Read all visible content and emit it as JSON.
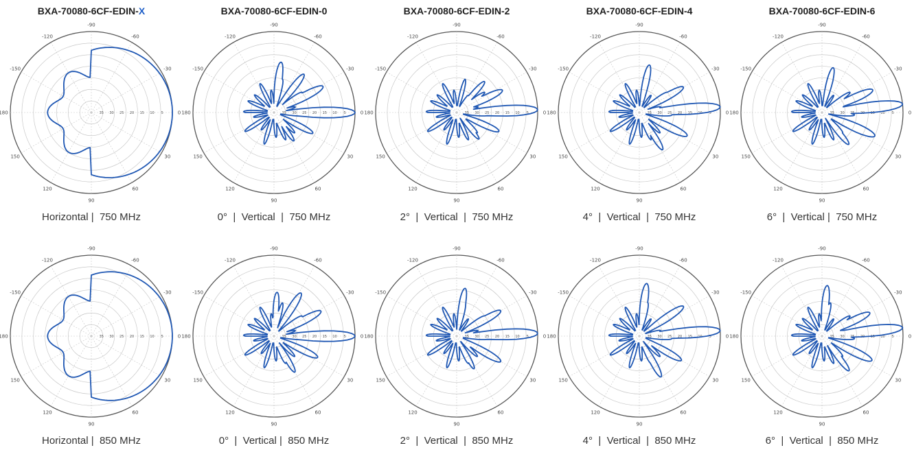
{
  "columns": [
    {
      "title_main": "BXA-70080-6CF-EDIN-",
      "title_suffix": "X"
    },
    {
      "title_main": "BXA-70080-6CF-EDIN-0",
      "title_suffix": ""
    },
    {
      "title_main": "BXA-70080-6CF-EDIN-2",
      "title_suffix": ""
    },
    {
      "title_main": "BXA-70080-6CF-EDIN-4",
      "title_suffix": ""
    },
    {
      "title_main": "BXA-70080-6CF-EDIN-6",
      "title_suffix": ""
    }
  ],
  "colors": {
    "trace": "#1f57b3",
    "grid": "#c8c8c8",
    "outer_ring": "#555555"
  },
  "chart_data": [
    {
      "type": "polar",
      "caption": "Horizontal |  750 MHz",
      "angle_labels": [
        "0",
        "-30",
        "-60",
        "-90",
        "-120",
        "-150",
        "180",
        "150",
        "120",
        "90",
        "60",
        "30"
      ],
      "radial_labels": [
        "35",
        "30",
        "25",
        "20",
        "15",
        "10",
        "5"
      ],
      "pattern": "horizontal",
      "beamwidth_deg": 65
    },
    {
      "type": "polar",
      "caption": "0°  |  Vertical  |  750 MHz",
      "angle_labels": [
        "0",
        "-30",
        "-60",
        "-90",
        "-120",
        "-150",
        "180",
        "150",
        "120",
        "90",
        "60",
        "30"
      ],
      "radial_labels": [
        "35",
        "30",
        "25",
        "20",
        "15",
        "10",
        "5"
      ],
      "pattern": "vertical",
      "tilt_deg": 0,
      "lobes": [
        {
          "angle": 0,
          "value_db": 0
        },
        {
          "angle": -28,
          "value_db": -11
        },
        {
          "angle": -52,
          "value_db": -14
        },
        {
          "angle": -82,
          "value_db": -13
        },
        {
          "angle": 28,
          "value_db": -16
        },
        {
          "angle": 55,
          "value_db": -20
        }
      ]
    },
    {
      "type": "polar",
      "caption": "2°  |  Vertical  |  750 MHz",
      "angle_labels": [
        "0",
        "-30",
        "-60",
        "-90",
        "-120",
        "-150",
        "180",
        "150",
        "120",
        "90",
        "60",
        "30"
      ],
      "radial_labels": [
        "35",
        "30",
        "25",
        "20",
        "15",
        "10",
        "5"
      ],
      "pattern": "vertical",
      "tilt_deg": 2,
      "lobes": [
        {
          "angle": -2,
          "value_db": 0
        },
        {
          "angle": -26,
          "value_db": -13
        },
        {
          "angle": -48,
          "value_db": -17
        },
        {
          "angle": 24,
          "value_db": -15
        },
        {
          "angle": 50,
          "value_db": -20
        }
      ]
    },
    {
      "type": "polar",
      "caption": "4°  |  Vertical  |  750 MHz",
      "angle_labels": [
        "0",
        "-30",
        "-60",
        "-90",
        "-120",
        "-150",
        "180",
        "150",
        "120",
        "90",
        "60",
        "30"
      ],
      "radial_labels": [
        "35",
        "30",
        "25",
        "20",
        "15",
        "10",
        "5"
      ],
      "pattern": "vertical",
      "tilt_deg": 4,
      "lobes": [
        {
          "angle": -4,
          "value_db": 0
        },
        {
          "angle": -30,
          "value_db": -13
        },
        {
          "angle": -78,
          "value_db": -14
        },
        {
          "angle": 26,
          "value_db": -12
        },
        {
          "angle": 58,
          "value_db": -16
        }
      ]
    },
    {
      "type": "polar",
      "caption": "6°  |  Vertical |  750 MHz",
      "angle_labels": [
        "0",
        "-30",
        "-60",
        "-90",
        "-120",
        "-150",
        "180",
        "150",
        "120",
        "90",
        "60",
        "30"
      ],
      "radial_labels": [
        "35",
        "30",
        "25",
        "20",
        "15",
        "10",
        "5"
      ],
      "pattern": "vertical",
      "tilt_deg": 6,
      "lobes": [
        {
          "angle": -6,
          "value_db": 0
        },
        {
          "angle": -24,
          "value_db": -11
        },
        {
          "angle": -76,
          "value_db": -15
        },
        {
          "angle": 24,
          "value_db": -10
        },
        {
          "angle": 50,
          "value_db": -17
        }
      ]
    },
    {
      "type": "polar",
      "caption": "Horizontal |  850 MHz",
      "angle_labels": [
        "0",
        "-30",
        "-60",
        "-90",
        "-120",
        "-150",
        "180",
        "150",
        "120",
        "90",
        "60",
        "30"
      ],
      "radial_labels": [
        "35",
        "30",
        "25",
        "20",
        "15",
        "10",
        "5"
      ],
      "pattern": "horizontal",
      "beamwidth_deg": 62
    },
    {
      "type": "polar",
      "caption": "0°  |  Vertical |  850 MHz",
      "angle_labels": [
        "0",
        "-30",
        "-60",
        "-90",
        "-120",
        "-150",
        "180",
        "150",
        "120",
        "90",
        "60",
        "30"
      ],
      "radial_labels": [
        "35",
        "30",
        "25",
        "20",
        "15",
        "10",
        "5"
      ],
      "pattern": "vertical",
      "tilt_deg": 0,
      "lobes": [
        {
          "angle": 0,
          "value_db": 0
        },
        {
          "angle": -28,
          "value_db": -12
        },
        {
          "angle": -58,
          "value_db": -13
        },
        {
          "angle": -86,
          "value_db": -16
        },
        {
          "angle": 26,
          "value_db": -14
        },
        {
          "angle": 60,
          "value_db": -17
        }
      ]
    },
    {
      "type": "polar",
      "caption": "2°  |  Vertical  |  850 MHz",
      "angle_labels": [
        "0",
        "-30",
        "-60",
        "-90",
        "-120",
        "-150",
        "180",
        "150",
        "120",
        "90",
        "60",
        "30"
      ],
      "radial_labels": [
        "35",
        "30",
        "25",
        "20",
        "15",
        "10",
        "5"
      ],
      "pattern": "vertical",
      "tilt_deg": 2,
      "lobes": [
        {
          "angle": -2,
          "value_db": 0
        },
        {
          "angle": -30,
          "value_db": -13
        },
        {
          "angle": -80,
          "value_db": -14
        },
        {
          "angle": 30,
          "value_db": -13
        },
        {
          "angle": 62,
          "value_db": -19
        }
      ]
    },
    {
      "type": "polar",
      "caption": "4°  |  Vertical  |  850 MHz",
      "angle_labels": [
        "0",
        "-30",
        "-60",
        "-90",
        "-120",
        "-150",
        "180",
        "150",
        "120",
        "90",
        "60",
        "30"
      ],
      "radial_labels": [
        "35",
        "30",
        "25",
        "20",
        "15",
        "10",
        "5"
      ],
      "pattern": "vertical",
      "tilt_deg": 4,
      "lobes": [
        {
          "angle": -4,
          "value_db": 0
        },
        {
          "angle": -34,
          "value_db": -12
        },
        {
          "angle": -82,
          "value_db": -12
        },
        {
          "angle": 30,
          "value_db": -14
        },
        {
          "angle": 62,
          "value_db": -15
        }
      ]
    },
    {
      "type": "polar",
      "caption": "6°  |  Vertical  |  850 MHz",
      "angle_labels": [
        "0",
        "-30",
        "-60",
        "-90",
        "-120",
        "-150",
        "180",
        "150",
        "120",
        "90",
        "60",
        "30"
      ],
      "radial_labels": [
        "35",
        "30",
        "25",
        "20",
        "15",
        "10",
        "5"
      ],
      "pattern": "vertical",
      "tilt_deg": 6,
      "lobes": [
        {
          "angle": -6,
          "value_db": 0
        },
        {
          "angle": -26,
          "value_db": -12
        },
        {
          "angle": -84,
          "value_db": -13
        },
        {
          "angle": 26,
          "value_db": -11
        },
        {
          "angle": 52,
          "value_db": -16
        }
      ]
    }
  ]
}
